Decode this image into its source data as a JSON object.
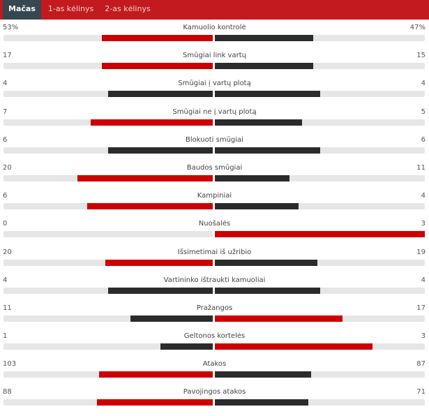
{
  "tabs": [
    {
      "label": "Mačas",
      "active": true
    },
    {
      "label": "1-as kėlinys",
      "active": false
    },
    {
      "label": "2-as kėlinys",
      "active": false
    }
  ],
  "colors": {
    "header": "#c21a1e",
    "active_tab": "#37474f",
    "leader": "#cc0000",
    "other": "#2b2b2b",
    "track": "#e6e6e6"
  },
  "stats": [
    {
      "label": "Kamuolio kontrolė",
      "home": "53%",
      "away": "47%",
      "h": 53,
      "a": 47
    },
    {
      "label": "Smūgiai link vartų",
      "home": "17",
      "away": "15",
      "h": 17,
      "a": 15
    },
    {
      "label": "Smūgiai į vartų plotą",
      "home": "4",
      "away": "4",
      "h": 4,
      "a": 4
    },
    {
      "label": "Smūgiai ne į vartų plotą",
      "home": "7",
      "away": "5",
      "h": 7,
      "a": 5
    },
    {
      "label": "Blokuoti smūgiai",
      "home": "6",
      "away": "6",
      "h": 6,
      "a": 6
    },
    {
      "label": "Baudos smūgiai",
      "home": "20",
      "away": "11",
      "h": 20,
      "a": 11
    },
    {
      "label": "Kampiniai",
      "home": "6",
      "away": "4",
      "h": 6,
      "a": 4
    },
    {
      "label": "Nuošalės",
      "home": "0",
      "away": "3",
      "h": 0,
      "a": 3
    },
    {
      "label": "Išsimetimai iš užribio",
      "home": "20",
      "away": "19",
      "h": 20,
      "a": 19
    },
    {
      "label": "Vartininko ištraukti kamuoliai",
      "home": "4",
      "away": "4",
      "h": 4,
      "a": 4
    },
    {
      "label": "Pražangos",
      "home": "11",
      "away": "17",
      "h": 11,
      "a": 17
    },
    {
      "label": "Geltonos kortelės",
      "home": "1",
      "away": "3",
      "h": 1,
      "a": 3
    },
    {
      "label": "Atakos",
      "home": "103",
      "away": "87",
      "h": 103,
      "a": 87
    },
    {
      "label": "Pavojingos atakos",
      "home": "88",
      "away": "71",
      "h": 88,
      "a": 71
    }
  ]
}
